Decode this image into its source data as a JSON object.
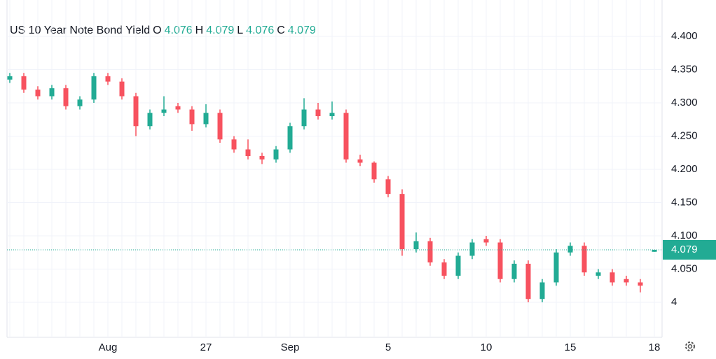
{
  "chart_data": {
    "type": "candlestick",
    "title": "US 10 Year Note Bond Yield",
    "ohlc_header": [
      {
        "key": "O",
        "value": 4.076
      },
      {
        "key": "H",
        "value": 4.079
      },
      {
        "key": "L",
        "value": 4.076
      },
      {
        "key": "C",
        "value": 4.079
      }
    ],
    "categories": [
      null,
      null,
      null,
      null,
      null,
      null,
      null,
      "Aug",
      null,
      null,
      null,
      null,
      null,
      null,
      "27",
      null,
      null,
      null,
      null,
      null,
      "Sep",
      null,
      null,
      null,
      null,
      null,
      null,
      "5",
      null,
      null,
      null,
      null,
      null,
      null,
      "10",
      null,
      null,
      null,
      null,
      null,
      "15",
      null,
      null,
      null,
      null,
      null,
      "18"
    ],
    "open": [
      4.335,
      4.34,
      4.32,
      4.31,
      4.322,
      4.295,
      4.305,
      4.34,
      4.332,
      4.31,
      4.265,
      4.285,
      4.295,
      4.29,
      4.268,
      4.285,
      4.245,
      4.23,
      4.22,
      4.215,
      4.23,
      4.265,
      4.29,
      4.28,
      4.285,
      4.215,
      4.21,
      4.185,
      4.163,
      4.08,
      4.092,
      4.06,
      4.04,
      4.07,
      4.095,
      4.09,
      4.035,
      4.058,
      4.005,
      4.03,
      4.075,
      4.085,
      4.04,
      4.045,
      4.035,
      4.03,
      4.076
    ],
    "high": [
      4.345,
      4.345,
      4.325,
      4.327,
      4.327,
      4.31,
      4.345,
      4.345,
      4.337,
      4.315,
      4.29,
      4.31,
      4.3,
      4.295,
      4.298,
      4.29,
      4.25,
      4.245,
      4.225,
      4.235,
      4.27,
      4.307,
      4.3,
      4.302,
      4.29,
      4.222,
      4.212,
      4.19,
      4.17,
      4.105,
      4.097,
      4.065,
      4.075,
      4.095,
      4.1,
      4.095,
      4.063,
      4.063,
      4.035,
      4.08,
      4.09,
      4.09,
      4.05,
      4.05,
      4.04,
      4.035,
      4.079
    ],
    "low": [
      4.33,
      4.315,
      4.305,
      4.305,
      4.29,
      4.29,
      4.3,
      4.327,
      4.305,
      4.25,
      4.26,
      4.28,
      4.285,
      4.258,
      4.263,
      4.24,
      4.225,
      4.215,
      4.208,
      4.21,
      4.225,
      4.26,
      4.275,
      4.275,
      4.21,
      4.205,
      4.18,
      4.158,
      4.07,
      4.075,
      4.055,
      4.035,
      4.035,
      4.065,
      4.085,
      4.03,
      4.03,
      4.0,
      4.0,
      4.025,
      4.07,
      4.04,
      4.035,
      4.025,
      4.025,
      4.015,
      4.076
    ],
    "close": [
      4.34,
      4.32,
      4.31,
      4.322,
      4.295,
      4.305,
      4.34,
      4.332,
      4.31,
      4.265,
      4.285,
      4.29,
      4.29,
      4.268,
      4.285,
      4.245,
      4.23,
      4.22,
      4.215,
      4.23,
      4.265,
      4.29,
      4.28,
      4.285,
      4.215,
      4.21,
      4.185,
      4.163,
      4.08,
      4.092,
      4.06,
      4.04,
      4.07,
      4.09,
      4.09,
      4.035,
      4.058,
      4.005,
      4.03,
      4.075,
      4.085,
      4.045,
      4.045,
      4.03,
      4.03,
      4.025,
      4.079
    ],
    "up_color": "#22ab94",
    "down_color": "#f7525f",
    "last_price": 4.079,
    "ylim": [
      3.95,
      4.444
    ],
    "yticks": [
      {
        "value": 4,
        "label": "4"
      },
      {
        "value": 4.05,
        "label": "4.050"
      },
      {
        "value": 4.1,
        "label": "4.100"
      },
      {
        "value": 4.15,
        "label": "4.150"
      },
      {
        "value": 4.2,
        "label": "4.200"
      },
      {
        "value": 4.25,
        "label": "4.250"
      },
      {
        "value": 4.3,
        "label": "4.300"
      },
      {
        "value": 4.35,
        "label": "4.350"
      },
      {
        "value": 4.4,
        "label": "4.400"
      }
    ],
    "grid": true
  }
}
